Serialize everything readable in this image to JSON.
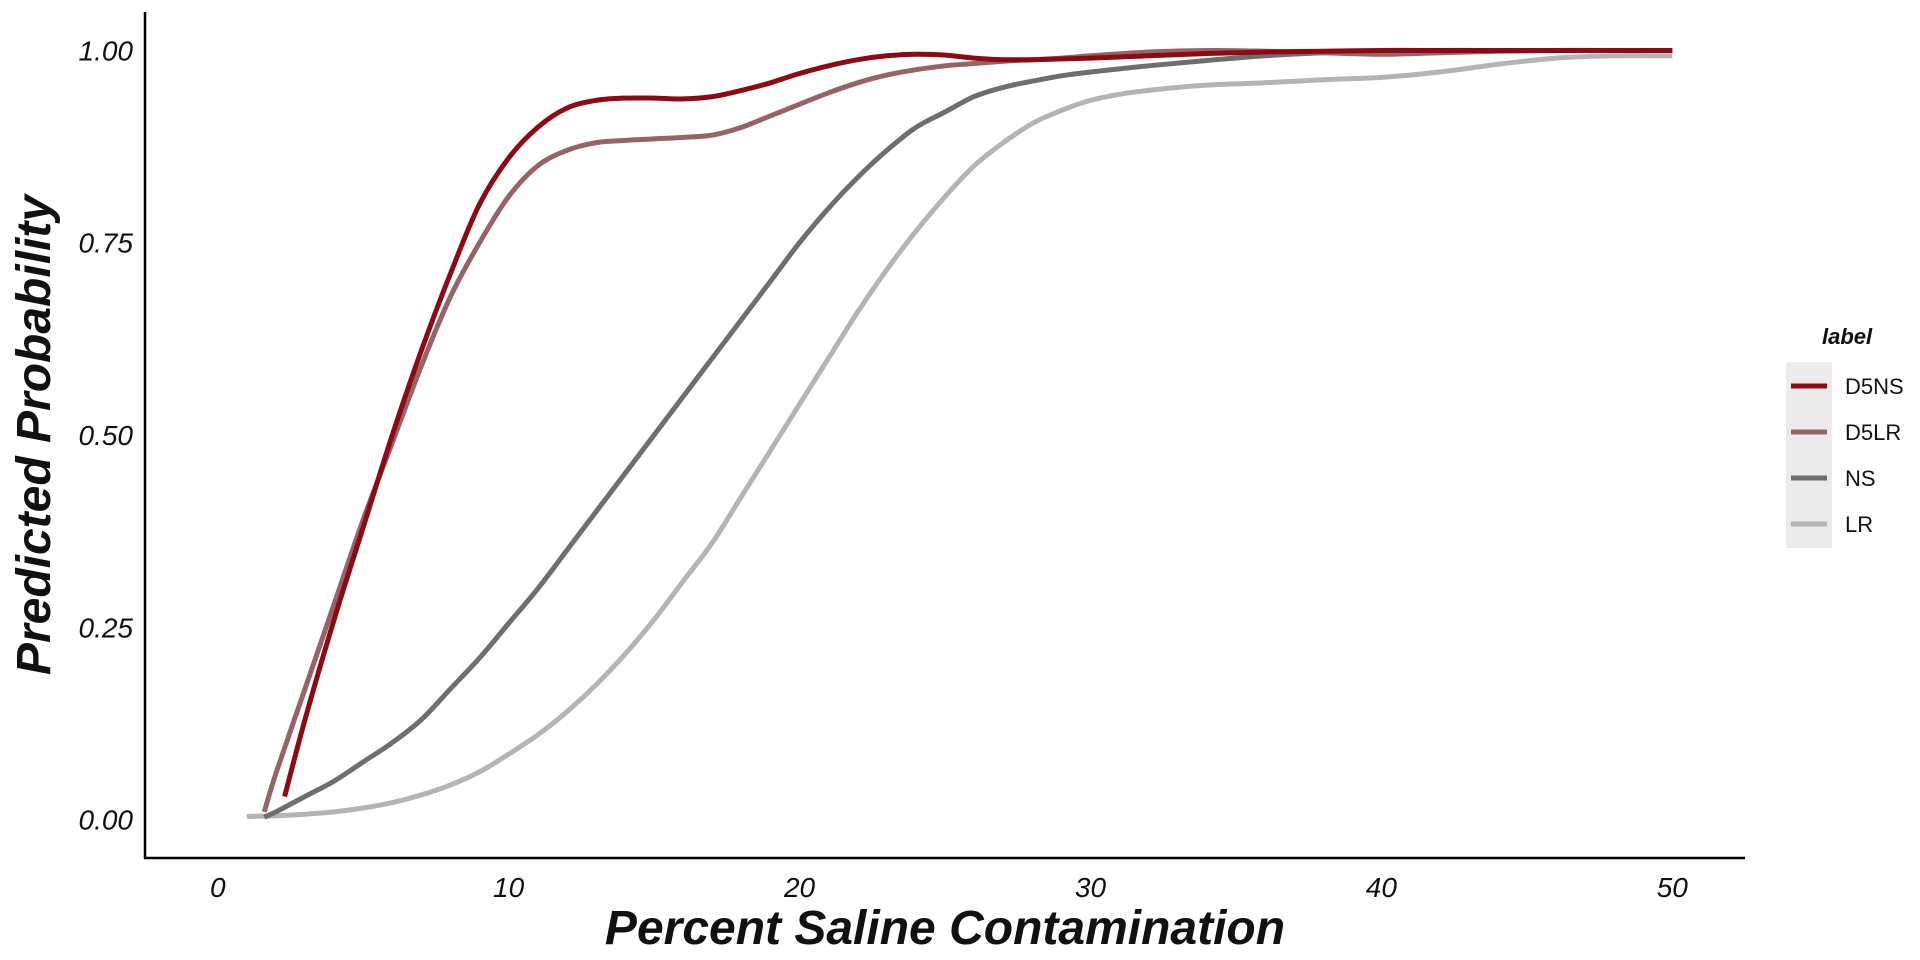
{
  "chart_data": {
    "type": "line",
    "xlabel": "Percent Saline Contamination",
    "ylabel": "Predicted Probability",
    "xlim": [
      -2.5,
      52.5
    ],
    "ylim": [
      -0.05,
      1.05
    ],
    "x_ticks": [
      0,
      10,
      20,
      30,
      40,
      50
    ],
    "x_tick_labels": [
      "0",
      "10",
      "20",
      "30",
      "40",
      "50"
    ],
    "y_ticks": [
      0,
      0.25,
      0.5,
      0.75,
      1.0
    ],
    "y_tick_labels": [
      "0.00",
      "0.25",
      "0.50",
      "0.75",
      "1.00"
    ],
    "grid": false,
    "legend_title": "label",
    "legend_position": "right",
    "series": [
      {
        "name": "D5NS",
        "color": "#8B0A14",
        "x": [
          2.3,
          3,
          4,
          5,
          6,
          7,
          8,
          9,
          10,
          11,
          12,
          13,
          14,
          15,
          16,
          17,
          18,
          19,
          20,
          21,
          22,
          23,
          24,
          25,
          26,
          27,
          28,
          29,
          30,
          32,
          34,
          36,
          38,
          40,
          42,
          44,
          46,
          48,
          50
        ],
        "y": [
          0.03,
          0.13,
          0.26,
          0.38,
          0.5,
          0.61,
          0.71,
          0.8,
          0.86,
          0.9,
          0.925,
          0.935,
          0.938,
          0.938,
          0.937,
          0.94,
          0.948,
          0.958,
          0.97,
          0.98,
          0.988,
          0.993,
          0.995,
          0.994,
          0.99,
          0.988,
          0.988,
          0.989,
          0.99,
          0.993,
          0.996,
          0.998,
          0.999,
          1.0,
          1.0,
          1.0,
          1.0,
          1.0,
          1.0
        ]
      },
      {
        "name": "D5LR",
        "color": "#966467",
        "x": [
          1.6,
          2,
          3,
          4,
          5,
          6,
          7,
          8,
          9,
          10,
          11,
          12,
          13,
          14,
          15,
          16,
          17,
          18,
          19,
          20,
          21,
          22,
          23,
          24,
          25,
          26,
          27,
          28,
          29,
          30,
          32,
          34,
          36,
          38,
          40,
          42,
          44,
          46,
          48,
          50
        ],
        "y": [
          0.01,
          0.06,
          0.17,
          0.28,
          0.39,
          0.49,
          0.59,
          0.68,
          0.75,
          0.81,
          0.85,
          0.87,
          0.88,
          0.883,
          0.885,
          0.887,
          0.89,
          0.9,
          0.915,
          0.93,
          0.945,
          0.958,
          0.968,
          0.975,
          0.98,
          0.983,
          0.986,
          0.988,
          0.99,
          0.993,
          0.998,
          1.0,
          0.999,
          0.997,
          0.995,
          0.997,
          0.999,
          1.0,
          1.0,
          1.0
        ]
      },
      {
        "name": "NS",
        "color": "#6E6E6E",
        "x": [
          1.6,
          2,
          3,
          4,
          5,
          6,
          7,
          8,
          9,
          10,
          11,
          12,
          13,
          14,
          15,
          16,
          17,
          18,
          19,
          20,
          21,
          22,
          23,
          24,
          25,
          26,
          27,
          28,
          29,
          30,
          32,
          34,
          36,
          38,
          40,
          42,
          44,
          46,
          48,
          50
        ],
        "y": [
          0.003,
          0.01,
          0.03,
          0.05,
          0.075,
          0.1,
          0.13,
          0.17,
          0.21,
          0.255,
          0.3,
          0.35,
          0.4,
          0.45,
          0.5,
          0.55,
          0.6,
          0.65,
          0.7,
          0.75,
          0.795,
          0.835,
          0.87,
          0.9,
          0.92,
          0.94,
          0.952,
          0.96,
          0.967,
          0.972,
          0.98,
          0.987,
          0.993,
          0.997,
          0.999,
          1.0,
          1.0,
          1.0,
          1.0,
          1.0
        ]
      },
      {
        "name": "LR",
        "color": "#B4B4B4",
        "x": [
          1,
          2,
          3,
          4,
          5,
          6,
          7,
          8,
          9,
          10,
          11,
          12,
          13,
          14,
          15,
          16,
          17,
          18,
          19,
          20,
          21,
          22,
          23,
          24,
          25,
          26,
          27,
          28,
          29,
          30,
          31,
          32,
          33,
          34,
          36,
          38,
          40,
          42,
          44,
          46,
          48,
          50
        ],
        "y": [
          0.004,
          0.005,
          0.007,
          0.01,
          0.015,
          0.022,
          0.032,
          0.045,
          0.062,
          0.085,
          0.11,
          0.14,
          0.175,
          0.215,
          0.26,
          0.31,
          0.36,
          0.42,
          0.48,
          0.54,
          0.6,
          0.66,
          0.715,
          0.765,
          0.81,
          0.85,
          0.88,
          0.905,
          0.922,
          0.935,
          0.943,
          0.948,
          0.952,
          0.955,
          0.958,
          0.962,
          0.965,
          0.972,
          0.982,
          0.99,
          0.993,
          0.993
        ]
      }
    ]
  }
}
